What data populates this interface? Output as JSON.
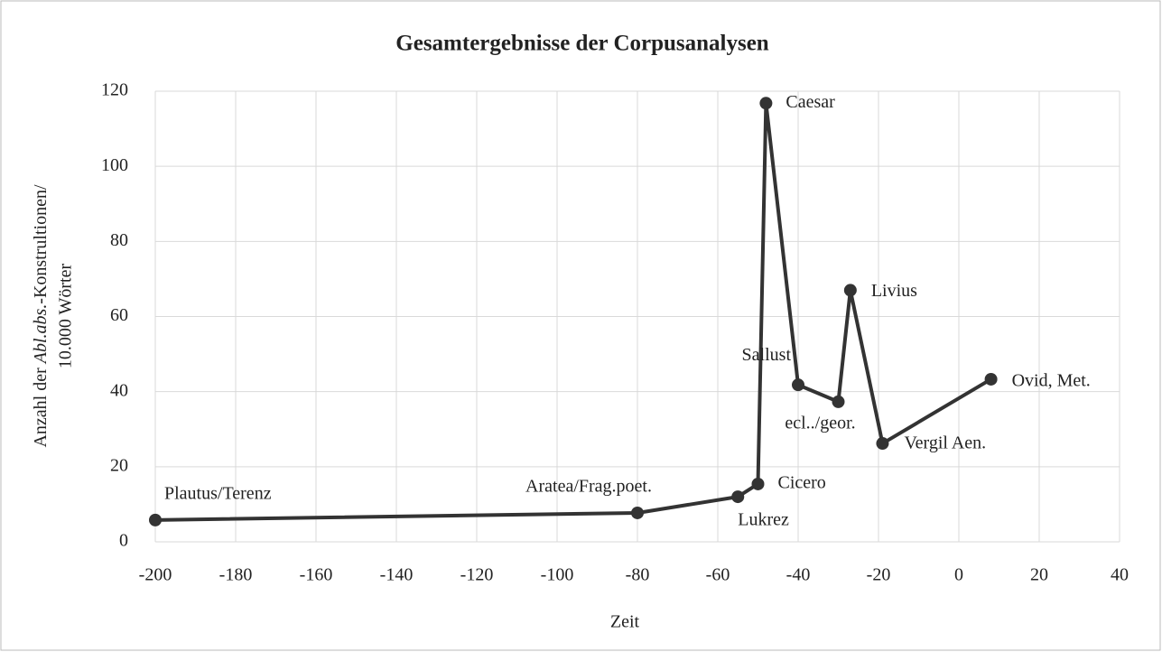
{
  "chart_data": {
    "type": "line",
    "title": "Gesamtergebnisse der Corpusanalysen",
    "xlabel": "Zeit",
    "ylabel": {
      "line1": [
        "Anzahl der ",
        "Abl.abs.",
        "-Konstrultionen/"
      ],
      "line2": "10.000 Wörter"
    },
    "x": [
      -200,
      -80,
      -55,
      -50,
      -48,
      -40,
      -30,
      -27,
      -19,
      8
    ],
    "series": [
      {
        "color": "#333333",
        "values": [
          5.8,
          7.7,
          12,
          15.4,
          116.8,
          41.8,
          37.3,
          67,
          26.2,
          43.3
        ]
      }
    ],
    "labels": [
      "Plautus/Terenz",
      "Aratea/Frag.poet.",
      "Lukrez",
      "Cicero",
      "Caesar",
      "Sallust",
      "ecl../geor.",
      "Livius",
      "Vergil Aen.",
      "Ovid, Met."
    ],
    "xlim": [
      -200,
      40
    ],
    "xticks": [
      -200,
      -180,
      -160,
      -140,
      -120,
      -100,
      -80,
      -60,
      -40,
      -20,
      0,
      20,
      40
    ],
    "ylim": [
      0,
      120
    ],
    "yticks": [
      0,
      20,
      40,
      60,
      80,
      100,
      120
    ],
    "grid": true
  }
}
